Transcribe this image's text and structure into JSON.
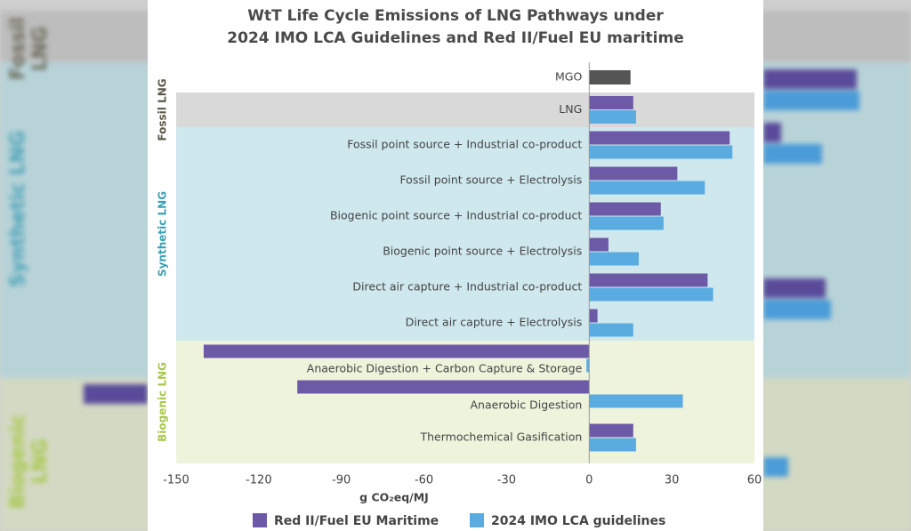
{
  "chart_data": {
    "type": "bar",
    "orientation": "horizontal",
    "title_lines": [
      "WtT Life Cycle Emissions of LNG Pathways under",
      "2024 IMO LCA Guidelines and Red II/Fuel EU maritime"
    ],
    "xlabel": "g CO₂eq/MJ",
    "ylabel": "",
    "xlim": [
      -150,
      60
    ],
    "xticks": [
      "-150",
      "-120",
      "-90",
      "-60",
      "-30",
      "0",
      "30",
      "60"
    ],
    "xtick_values": [
      -150,
      -120,
      -90,
      -60,
      -30,
      0,
      30,
      60
    ],
    "grid": false,
    "legend_position": "bottom",
    "groups": [
      {
        "label": "Fossil LNG",
        "color": "#5a5a4a",
        "band": "#d9d9d9",
        "from": 1,
        "to": 1
      },
      {
        "label": "Synthetic LNG",
        "color": "#3aa0b4",
        "band": "#cfe8ee",
        "from": 2,
        "to": 7
      },
      {
        "label": "Biogenic LNG",
        "color": "#a8c84a",
        "band": "#eef3dc",
        "from": 8,
        "to": 10
      }
    ],
    "categories": [
      "MGO",
      "LNG",
      "Fossil point source + Industrial co-product",
      "Fossil point source + Electrolysis",
      "Biogenic point source + Industrial co-product",
      "Biogenic point source + Electrolysis",
      "Direct air capture + Industrial co-product",
      "Direct air capture + Electrolysis",
      "Anaerobic Digestion + Carbon Capture & Storage",
      "Anaerobic Digestion",
      "Thermochemical Gasification"
    ],
    "baseline": {
      "category": "MGO",
      "value": 15,
      "color": "#555555"
    },
    "series": [
      {
        "name": "Red II/Fuel EU Maritime",
        "color": "#6c5aa6",
        "values": [
          null,
          16,
          51,
          32,
          26,
          7,
          43,
          3,
          -140,
          -106,
          16
        ]
      },
      {
        "name": "2024 IMO LCA guidelines",
        "color": "#5aace0",
        "values": [
          null,
          17,
          52,
          42,
          27,
          18,
          45,
          16,
          -1,
          34,
          17
        ]
      }
    ]
  },
  "backdrop": {
    "left_labels": [
      "Fossil LNG",
      "Synthetic LNG",
      "Biogenic LNG"
    ]
  }
}
